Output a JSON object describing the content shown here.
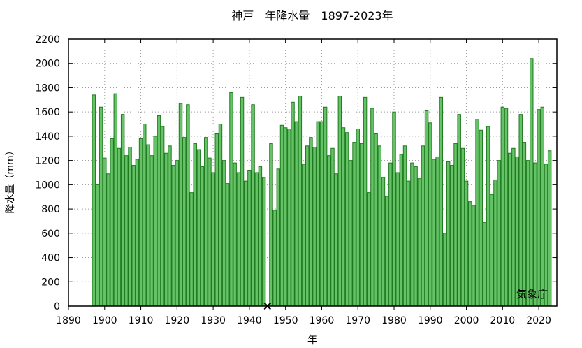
{
  "chart_data": {
    "type": "bar",
    "title": "神戸　年降水量　1897-2023年",
    "xlabel": "年",
    "ylabel": "降水量（mm）",
    "xlim": [
      1890,
      2025
    ],
    "ylim": [
      0,
      2200
    ],
    "xticks": [
      1890,
      1900,
      1910,
      1920,
      1930,
      1940,
      1950,
      1960,
      1970,
      1980,
      1990,
      2000,
      2010,
      2020
    ],
    "yticks": [
      0,
      200,
      400,
      600,
      800,
      1000,
      1200,
      1400,
      1600,
      1800,
      2000,
      2200
    ],
    "grid": true,
    "credit": "気象庁",
    "missing_years": [
      1945
    ],
    "series_color": "#66c266",
    "series_edge_color": "#1f7a1f",
    "x": [
      1897,
      1898,
      1899,
      1900,
      1901,
      1902,
      1903,
      1904,
      1905,
      1906,
      1907,
      1908,
      1909,
      1910,
      1911,
      1912,
      1913,
      1914,
      1915,
      1916,
      1917,
      1918,
      1919,
      1920,
      1921,
      1922,
      1923,
      1924,
      1925,
      1926,
      1927,
      1928,
      1929,
      1930,
      1931,
      1932,
      1933,
      1934,
      1935,
      1936,
      1937,
      1938,
      1939,
      1940,
      1941,
      1942,
      1943,
      1944,
      1946,
      1947,
      1948,
      1949,
      1950,
      1951,
      1952,
      1953,
      1954,
      1955,
      1956,
      1957,
      1958,
      1959,
      1960,
      1961,
      1962,
      1963,
      1964,
      1965,
      1966,
      1967,
      1968,
      1969,
      1970,
      1971,
      1972,
      1973,
      1974,
      1975,
      1976,
      1977,
      1978,
      1979,
      1980,
      1981,
      1982,
      1983,
      1984,
      1985,
      1986,
      1987,
      1988,
      1989,
      1990,
      1991,
      1992,
      1993,
      1994,
      1995,
      1996,
      1997,
      1998,
      1999,
      2000,
      2001,
      2002,
      2003,
      2004,
      2005,
      2006,
      2007,
      2008,
      2009,
      2010,
      2011,
      2012,
      2013,
      2014,
      2015,
      2016,
      2017,
      2018,
      2019,
      2020,
      2021,
      2022,
      2023
    ],
    "values": [
      1740,
      1000,
      1640,
      1220,
      1090,
      1380,
      1750,
      1300,
      1580,
      1240,
      1310,
      1160,
      1210,
      1380,
      1500,
      1330,
      1240,
      1400,
      1570,
      1480,
      1260,
      1320,
      1160,
      1200,
      1670,
      1390,
      1660,
      935,
      1340,
      1290,
      1150,
      1390,
      1220,
      1100,
      1420,
      1500,
      1200,
      1010,
      1760,
      1180,
      1100,
      1720,
      1030,
      1120,
      1660,
      1100,
      1150,
      1060,
      1340,
      790,
      1130,
      1490,
      1470,
      1460,
      1680,
      1520,
      1730,
      1170,
      1320,
      1390,
      1310,
      1520,
      1520,
      1640,
      1240,
      1300,
      1090,
      1730,
      1470,
      1430,
      1200,
      1350,
      1460,
      1340,
      1720,
      935,
      1630,
      1420,
      1320,
      1060,
      905,
      1180,
      1600,
      1100,
      1250,
      1320,
      1030,
      1180,
      1150,
      1050,
      1320,
      1610,
      1510,
      1210,
      1230,
      1720,
      600,
      1190,
      1160,
      1340,
      1580,
      1300,
      1030,
      860,
      830,
      1540,
      1450,
      690,
      1480,
      920,
      1040,
      1200,
      1640,
      1630,
      1260,
      1300,
      1230,
      1580,
      1350,
      1200,
      2040,
      1180,
      1620,
      1640,
      1170,
      1280
    ]
  }
}
